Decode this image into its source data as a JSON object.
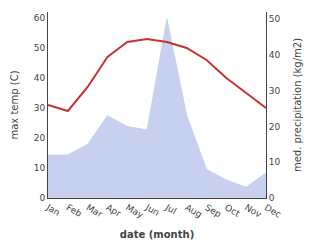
{
  "chart_data": {
    "type": "line",
    "categories": [
      "Jan",
      "Feb",
      "Mar",
      "Apr",
      "May",
      "Jun",
      "Jul",
      "Aug",
      "Sep",
      "Oct",
      "Nov",
      "Dec"
    ],
    "xlabel": "date (month)",
    "ylabel": "max temp (C)",
    "y2label": "med. precipitation (kg/m2)",
    "series": [
      {
        "type": "area",
        "axis": "y2",
        "color": "#c8d0f0",
        "values": [
          12,
          12,
          15,
          23,
          20,
          19,
          50,
          23,
          8,
          5,
          3,
          7
        ]
      },
      {
        "type": "line",
        "color": "#c83232",
        "values": [
          31,
          29,
          37,
          47,
          52,
          53,
          52,
          50,
          46,
          40,
          35,
          30
        ]
      }
    ],
    "ylim": [
      0,
      62
    ],
    "yticks": [
      0,
      10,
      20,
      30,
      40,
      50,
      60
    ],
    "y2lim": [
      0,
      52
    ],
    "y2ticks": [
      0,
      10,
      20,
      30,
      40,
      50
    ],
    "grid": false
  }
}
